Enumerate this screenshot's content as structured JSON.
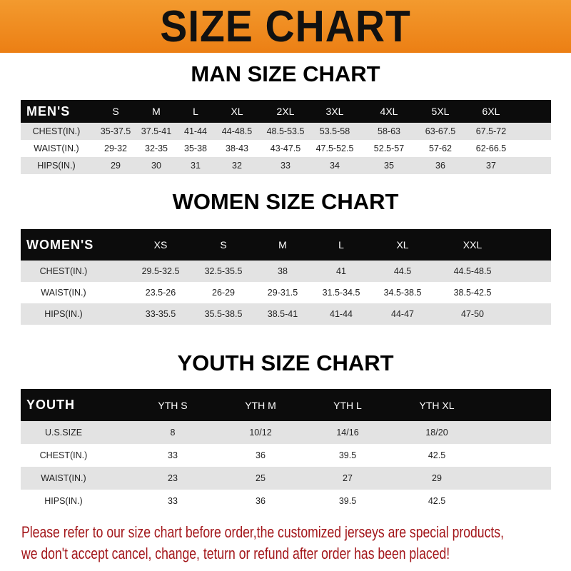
{
  "banner_title": "SIZE CHART",
  "tables": [
    {
      "title": "MAN SIZE CHART",
      "header_label": "MEN'S",
      "sizes": [
        "S",
        "M",
        "L",
        "XL",
        "2XL",
        "3XL",
        "4XL",
        "5XL",
        "6XL"
      ],
      "rows": [
        {
          "label": "CHEST(IN.)",
          "values": [
            "35-37.5",
            "37.5-41",
            "41-44",
            "44-48.5",
            "48.5-53.5",
            "53.5-58",
            "58-63",
            "63-67.5",
            "67.5-72"
          ]
        },
        {
          "label": "WAIST(IN.)",
          "values": [
            "29-32",
            "32-35",
            "35-38",
            "38-43",
            "43-47.5",
            "47.5-52.5",
            "52.5-57",
            "57-62",
            "62-66.5"
          ]
        },
        {
          "label": "HIPS(IN.)",
          "values": [
            "29",
            "30",
            "31",
            "32",
            "33",
            "34",
            "35",
            "36",
            "37"
          ]
        }
      ]
    },
    {
      "title": "WOMEN SIZE CHART",
      "header_label": "WOMEN'S",
      "sizes": [
        "XS",
        "S",
        "M",
        "L",
        "XL",
        "XXL"
      ],
      "rows": [
        {
          "label": "CHEST(IN.)",
          "values": [
            "29.5-32.5",
            "32.5-35.5",
            "38",
            "41",
            "44.5",
            "44.5-48.5"
          ]
        },
        {
          "label": "WAIST(IN.)",
          "values": [
            "23.5-26",
            "26-29",
            "29-31.5",
            "31.5-34.5",
            "34.5-38.5",
            "38.5-42.5"
          ]
        },
        {
          "label": "HIPS(IN.)",
          "values": [
            "33-35.5",
            "35.5-38.5",
            "38.5-41",
            "41-44",
            "44-47",
            "47-50"
          ]
        }
      ]
    },
    {
      "title": "YOUTH SIZE CHART",
      "header_label": "YOUTH",
      "sizes": [
        "YTH S",
        "YTH M",
        "YTH L",
        "YTH XL"
      ],
      "rows": [
        {
          "label": "U.S.SIZE",
          "values": [
            "8",
            "10/12",
            "14/16",
            "18/20"
          ]
        },
        {
          "label": "CHEST(IN.)",
          "values": [
            "33",
            "36",
            "39.5",
            "42.5"
          ]
        },
        {
          "label": "WAIST(IN.)",
          "values": [
            "23",
            "25",
            "27",
            "29"
          ]
        },
        {
          "label": "HIPS(IN.)",
          "values": [
            "33",
            "36",
            "39.5",
            "42.5"
          ]
        }
      ]
    }
  ],
  "notice": [
    "Please refer to our size chart before order,the customized jerseys are special products,",
    "we don't accept cancel, change, teturn or refund after order has been placed!"
  ],
  "colors": {
    "banner": "#ee8419",
    "header_row": "#0c0c0c",
    "stripe": "#e3e3e3",
    "notice": "#a3161a"
  }
}
